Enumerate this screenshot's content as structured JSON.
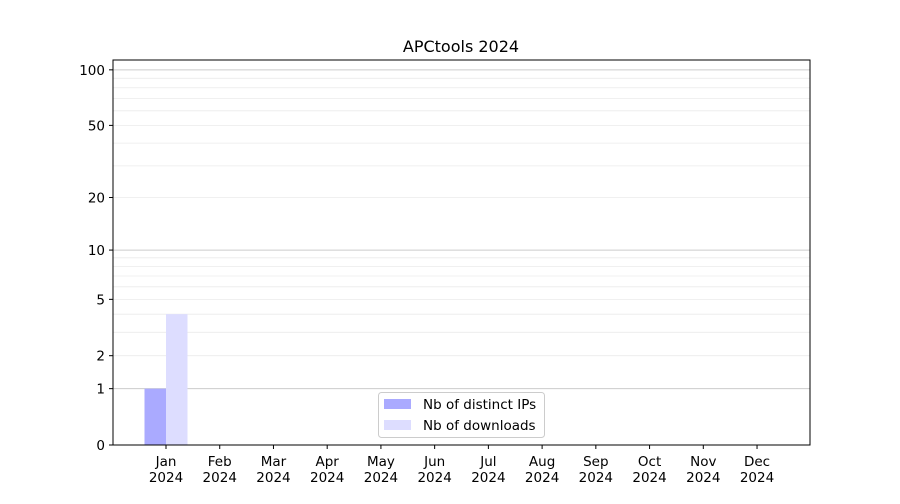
{
  "chart_data": {
    "type": "bar",
    "title": "APCtools 2024",
    "xlabel": "",
    "ylabel": "",
    "y_scale": "log(1+y)",
    "ylim": [
      0,
      113
    ],
    "y_ticks": [
      0,
      1,
      2,
      5,
      10,
      20,
      50,
      100
    ],
    "y_major_grid": [
      1,
      10,
      100
    ],
    "y_minor_grid": [
      2,
      3,
      4,
      5,
      6,
      7,
      8,
      9,
      20,
      30,
      40,
      50,
      60,
      70,
      80,
      90
    ],
    "grid": true,
    "legend_position": "bottom-center",
    "categories": [
      "Jan\n2024",
      "Feb\n2024",
      "Mar\n2024",
      "Apr\n2024",
      "May\n2024",
      "Jun\n2024",
      "Jul\n2024",
      "Aug\n2024",
      "Sep\n2024",
      "Oct\n2024",
      "Nov\n2024",
      "Dec\n2024"
    ],
    "series": [
      {
        "name": "Nb of distinct IPs",
        "color": "#aaaaff",
        "values": [
          1,
          0,
          0,
          0,
          0,
          0,
          0,
          0,
          0,
          0,
          0,
          0
        ]
      },
      {
        "name": "Nb of downloads",
        "color": "#ddddff",
        "values": [
          4,
          0,
          0,
          0,
          0,
          0,
          0,
          0,
          0,
          0,
          0,
          0
        ]
      }
    ]
  }
}
